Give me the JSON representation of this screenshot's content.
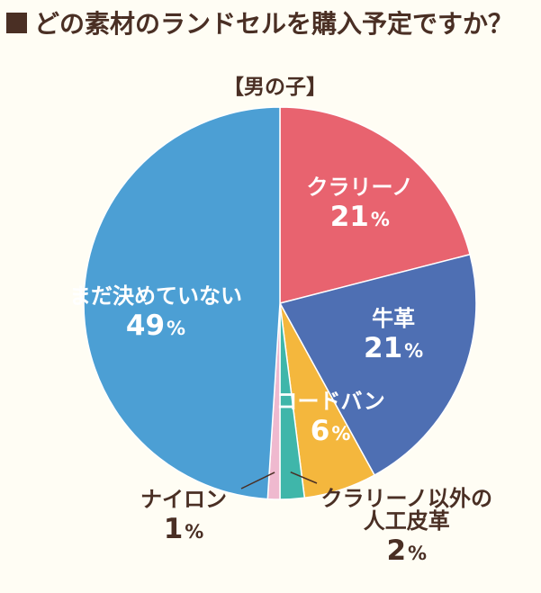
{
  "title": "どの素材のランドセルを購入予定ですか？",
  "subtitle": "【男の子】",
  "chart_data": {
    "type": "pie",
    "title": "どの素材のランドセルを購入予定ですか？",
    "subtitle": "【男の子】",
    "slices": [
      {
        "label": "クラリーノ",
        "value": 21,
        "display": "21",
        "unit": "%",
        "color": "#e8636f"
      },
      {
        "label": "牛革",
        "value": 21,
        "display": "21",
        "unit": "%",
        "color": "#4e6fb3"
      },
      {
        "label": "コードバン",
        "value": 6,
        "display": "6",
        "unit": "%",
        "color": "#f4b73d"
      },
      {
        "label": "クラリーノ以外の人工皮革",
        "value": 2,
        "display": "2",
        "unit": "%",
        "color": "#3fb6aa"
      },
      {
        "label": "ナイロン",
        "value": 1,
        "display": "1",
        "unit": "%",
        "color": "#efb9cf"
      },
      {
        "label": "まだ決めていない",
        "value": 49,
        "display": "49",
        "unit": "%",
        "color": "#4c9fd4"
      }
    ],
    "label_lines": {
      "クラリーノ以外の人工皮革": [
        "クラリーノ以外の",
        "人工皮革"
      ]
    }
  }
}
